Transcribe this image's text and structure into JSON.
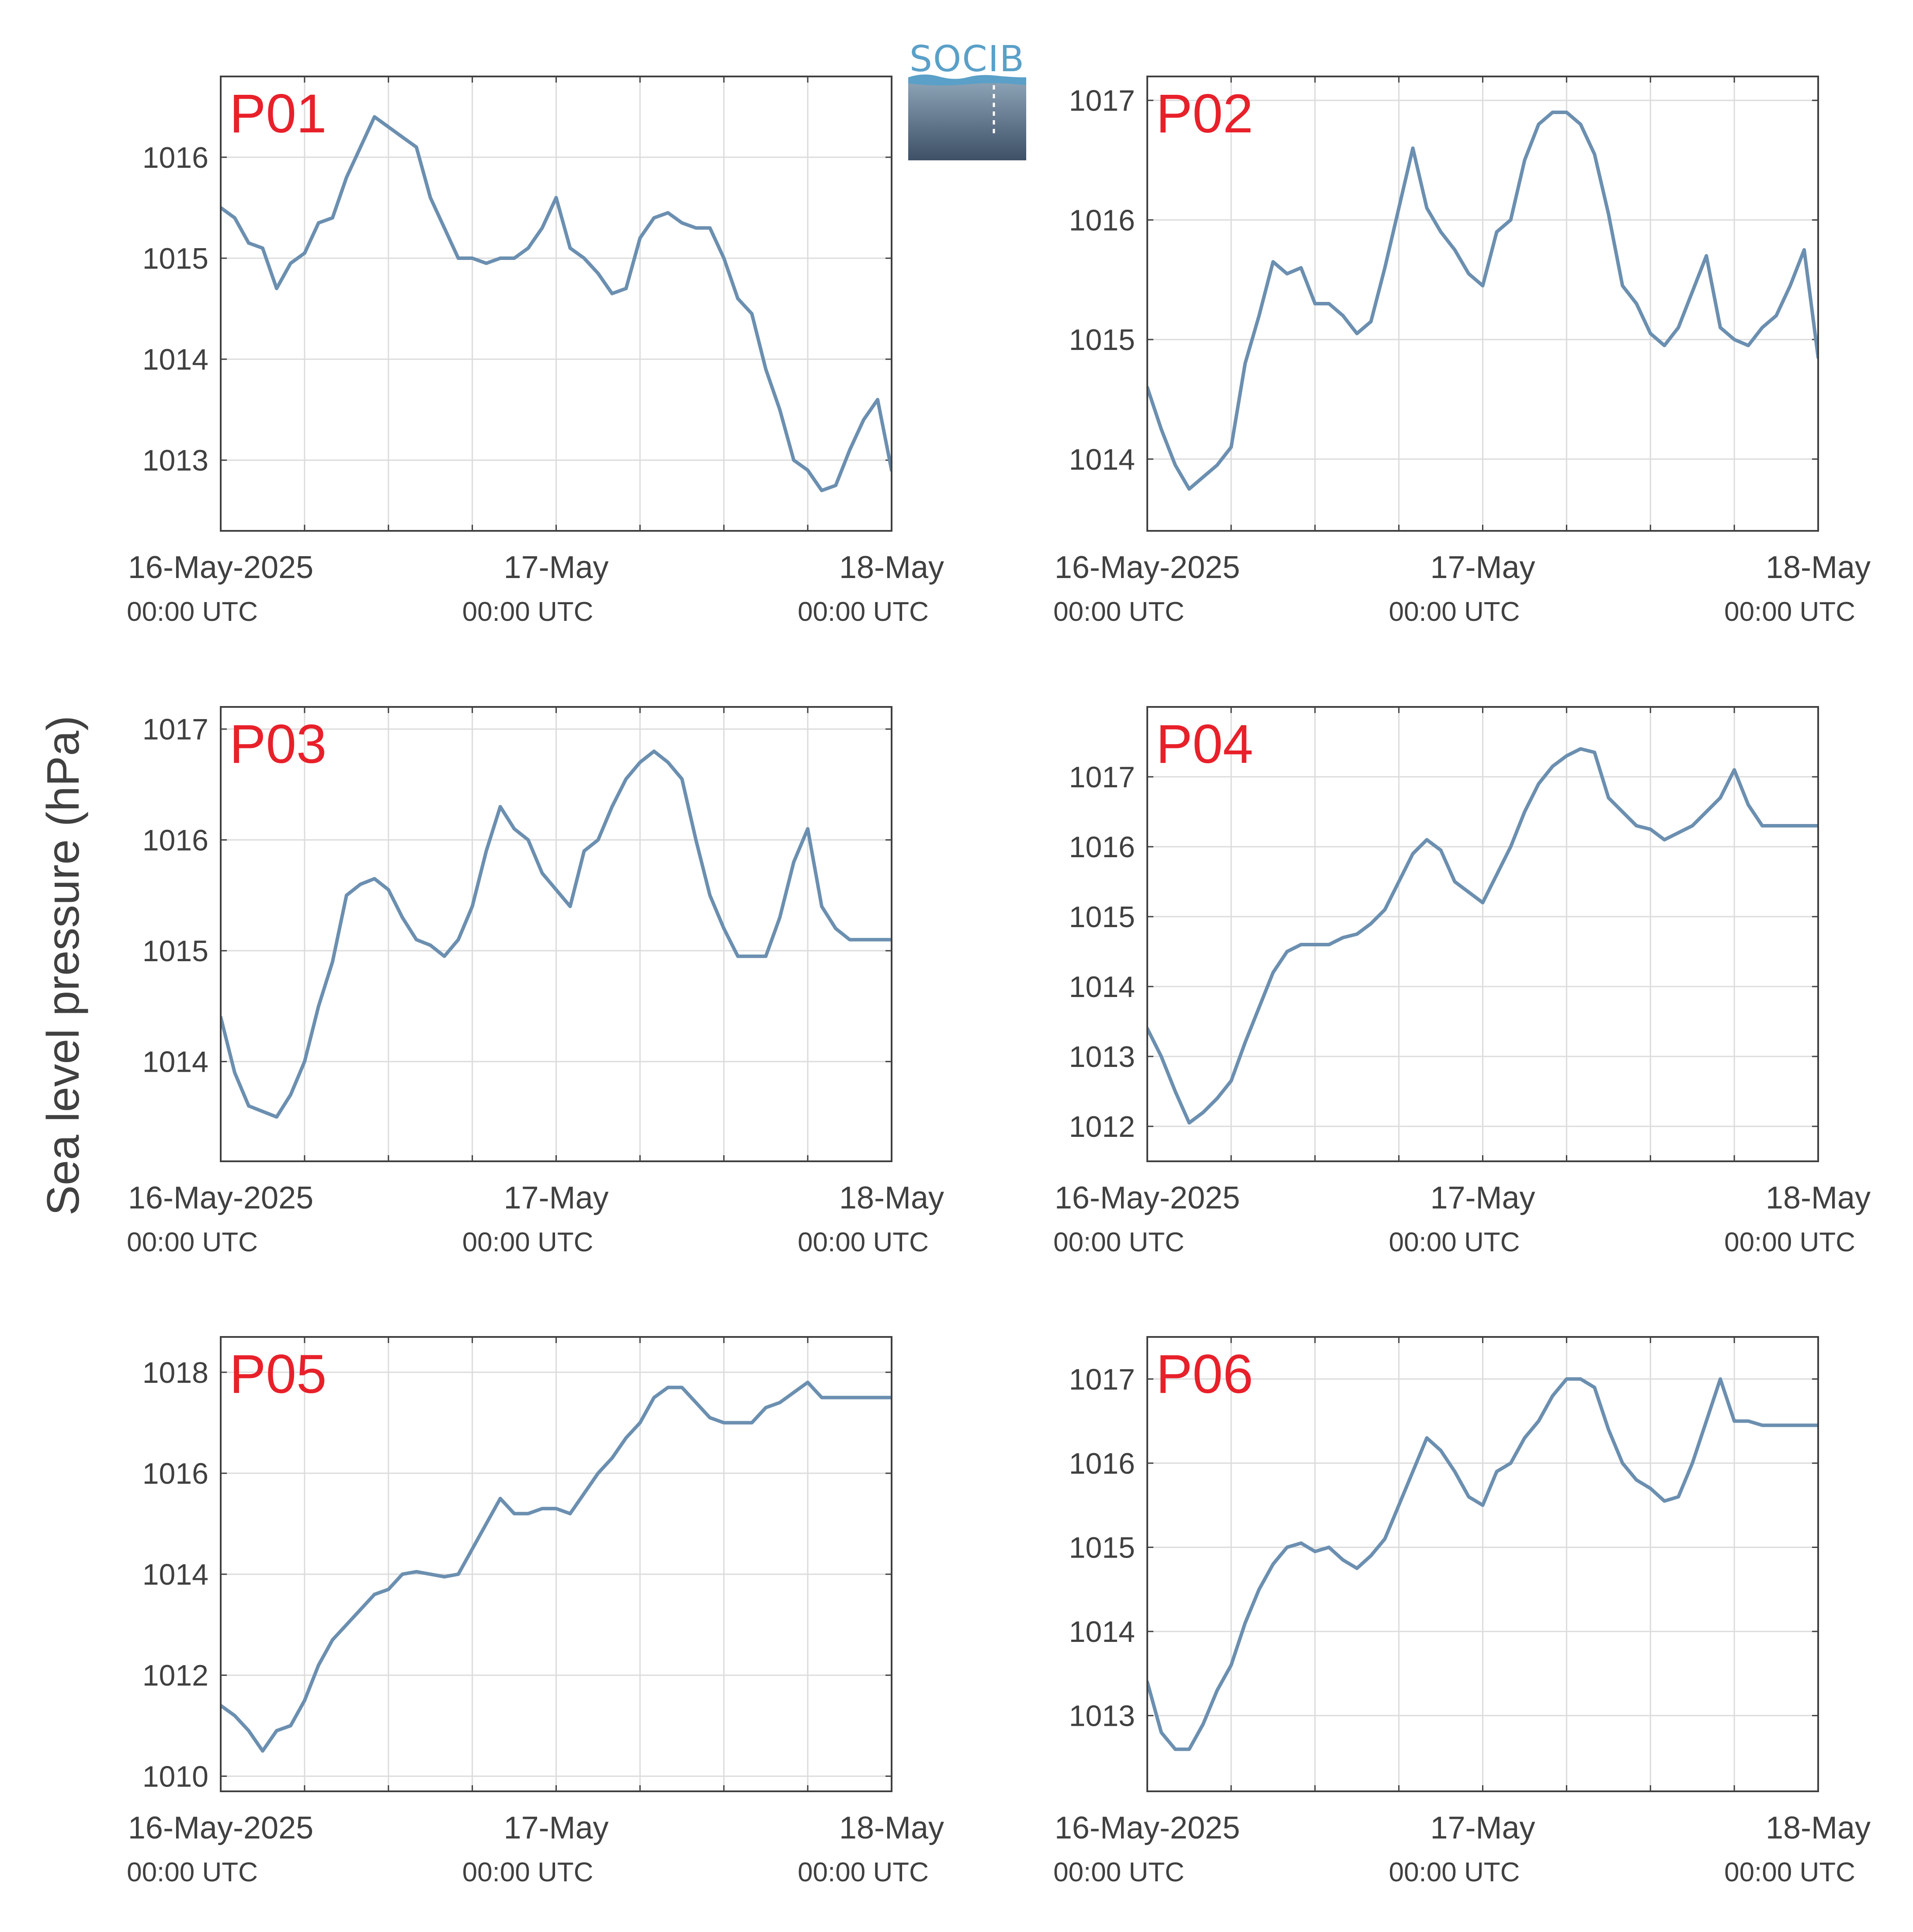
{
  "figure": {
    "ylabel": "Sea level pressure (hPa)",
    "logo_text": "SOCIB"
  },
  "colors": {
    "series_line": "#6b8fb0",
    "panel_label": "#e8202a",
    "axis": "#404040",
    "grid": "#dcdcdc"
  },
  "chart_data": [
    {
      "type": "line",
      "panel_label": "P01",
      "x_ticks": [
        {
          "date": "16-May-2025",
          "time": "00:00 UTC"
        },
        {
          "date": "17-May",
          "time": "00:00 UTC"
        },
        {
          "date": "18-May",
          "time": "00:00 UTC"
        }
      ],
      "x_range": [
        "2025-05-16T00:00",
        "2025-05-18T00:00"
      ],
      "ylim": [
        1012.3,
        1016.8
      ],
      "y_ticks": [
        1013,
        1014,
        1015,
        1016
      ],
      "grid": true,
      "x": [
        "2025-05-16T00:00",
        "2025-05-16T01:00",
        "2025-05-16T02:00",
        "2025-05-16T03:00",
        "2025-05-16T04:00",
        "2025-05-16T05:00",
        "2025-05-16T06:00",
        "2025-05-16T07:00",
        "2025-05-16T08:00",
        "2025-05-16T09:00",
        "2025-05-16T10:00",
        "2025-05-16T11:00",
        "2025-05-16T12:00",
        "2025-05-16T13:00",
        "2025-05-16T14:00",
        "2025-05-16T15:00",
        "2025-05-16T16:00",
        "2025-05-16T17:00",
        "2025-05-16T18:00",
        "2025-05-16T19:00",
        "2025-05-16T20:00",
        "2025-05-16T21:00",
        "2025-05-16T22:00",
        "2025-05-16T23:00",
        "2025-05-17T00:00",
        "2025-05-17T01:00",
        "2025-05-17T02:00",
        "2025-05-17T03:00",
        "2025-05-17T04:00",
        "2025-05-17T05:00",
        "2025-05-17T06:00",
        "2025-05-17T07:00",
        "2025-05-17T08:00",
        "2025-05-17T09:00",
        "2025-05-17T10:00",
        "2025-05-17T11:00",
        "2025-05-17T12:00",
        "2025-05-17T13:00",
        "2025-05-17T14:00",
        "2025-05-17T15:00",
        "2025-05-17T16:00",
        "2025-05-17T17:00",
        "2025-05-17T18:00",
        "2025-05-17T19:00",
        "2025-05-17T20:00",
        "2025-05-17T21:00",
        "2025-05-17T22:00",
        "2025-05-17T23:00",
        "2025-05-18T00:00"
      ],
      "y": [
        1015.5,
        1015.4,
        1015.15,
        1015.1,
        1014.7,
        1014.95,
        1015.05,
        1015.35,
        1015.4,
        1015.8,
        1016.1,
        1016.4,
        1016.3,
        1016.2,
        1016.1,
        1015.6,
        1015.3,
        1015.0,
        1015.0,
        1014.95,
        1015.0,
        1015.0,
        1015.1,
        1015.3,
        1015.6,
        1015.1,
        1015.0,
        1014.85,
        1014.65,
        1014.7,
        1015.2,
        1015.4,
        1015.45,
        1015.35,
        1015.3,
        1015.3,
        1015.0,
        1014.6,
        1014.45,
        1013.9,
        1013.5,
        1013.0,
        1012.9,
        1012.7,
        1012.75,
        1013.1,
        1013.4,
        1013.6,
        1012.9
      ]
    },
    {
      "type": "line",
      "panel_label": "P02",
      "x_ticks": [
        {
          "date": "16-May-2025",
          "time": "00:00 UTC"
        },
        {
          "date": "17-May",
          "time": "00:00 UTC"
        },
        {
          "date": "18-May",
          "time": "00:00 UTC"
        }
      ],
      "x_range": [
        "2025-05-16T00:00",
        "2025-05-18T00:00"
      ],
      "ylim": [
        1013.4,
        1017.2
      ],
      "y_ticks": [
        1014,
        1015,
        1016,
        1017
      ],
      "grid": true,
      "x": [
        "2025-05-16T00:00",
        "2025-05-16T01:00",
        "2025-05-16T02:00",
        "2025-05-16T03:00",
        "2025-05-16T04:00",
        "2025-05-16T05:00",
        "2025-05-16T06:00",
        "2025-05-16T07:00",
        "2025-05-16T08:00",
        "2025-05-16T09:00",
        "2025-05-16T10:00",
        "2025-05-16T11:00",
        "2025-05-16T12:00",
        "2025-05-16T13:00",
        "2025-05-16T14:00",
        "2025-05-16T15:00",
        "2025-05-16T16:00",
        "2025-05-16T17:00",
        "2025-05-16T18:00",
        "2025-05-16T19:00",
        "2025-05-16T20:00",
        "2025-05-16T21:00",
        "2025-05-16T22:00",
        "2025-05-16T23:00",
        "2025-05-17T00:00",
        "2025-05-17T01:00",
        "2025-05-17T02:00",
        "2025-05-17T03:00",
        "2025-05-17T04:00",
        "2025-05-17T05:00",
        "2025-05-17T06:00",
        "2025-05-17T07:00",
        "2025-05-17T08:00",
        "2025-05-17T09:00",
        "2025-05-17T10:00",
        "2025-05-17T11:00",
        "2025-05-17T12:00",
        "2025-05-17T13:00",
        "2025-05-17T14:00",
        "2025-05-17T15:00",
        "2025-05-17T16:00",
        "2025-05-17T17:00",
        "2025-05-17T18:00",
        "2025-05-17T19:00",
        "2025-05-17T20:00",
        "2025-05-17T21:00",
        "2025-05-17T22:00",
        "2025-05-17T23:00",
        "2025-05-18T00:00"
      ],
      "y": [
        1014.6,
        1014.25,
        1013.95,
        1013.75,
        1013.85,
        1013.95,
        1014.1,
        1014.8,
        1015.2,
        1015.65,
        1015.55,
        1015.6,
        1015.3,
        1015.3,
        1015.2,
        1015.05,
        1015.15,
        1015.6,
        1016.1,
        1016.6,
        1016.1,
        1015.9,
        1015.75,
        1015.55,
        1015.45,
        1015.9,
        1016.0,
        1016.5,
        1016.8,
        1016.9,
        1016.9,
        1016.8,
        1016.55,
        1016.05,
        1015.45,
        1015.3,
        1015.05,
        1014.95,
        1015.1,
        1015.4,
        1015.7,
        1015.1,
        1015.0,
        1014.95,
        1015.1,
        1015.2,
        1015.45,
        1015.75,
        1014.85
      ]
    },
    {
      "type": "line",
      "panel_label": "P03",
      "x_ticks": [
        {
          "date": "16-May-2025",
          "time": "00:00 UTC"
        },
        {
          "date": "17-May",
          "time": "00:00 UTC"
        },
        {
          "date": "18-May",
          "time": "00:00 UTC"
        }
      ],
      "x_range": [
        "2025-05-16T00:00",
        "2025-05-18T00:00"
      ],
      "ylim": [
        1013.1,
        1017.2
      ],
      "y_ticks": [
        1014,
        1015,
        1016,
        1017
      ],
      "grid": true,
      "x": [
        "2025-05-16T00:00",
        "2025-05-16T01:00",
        "2025-05-16T02:00",
        "2025-05-16T03:00",
        "2025-05-16T04:00",
        "2025-05-16T05:00",
        "2025-05-16T06:00",
        "2025-05-16T07:00",
        "2025-05-16T08:00",
        "2025-05-16T09:00",
        "2025-05-16T10:00",
        "2025-05-16T11:00",
        "2025-05-16T12:00",
        "2025-05-16T13:00",
        "2025-05-16T14:00",
        "2025-05-16T15:00",
        "2025-05-16T16:00",
        "2025-05-16T17:00",
        "2025-05-16T18:00",
        "2025-05-16T19:00",
        "2025-05-16T20:00",
        "2025-05-16T21:00",
        "2025-05-16T22:00",
        "2025-05-16T23:00",
        "2025-05-17T00:00",
        "2025-05-17T01:00",
        "2025-05-17T02:00",
        "2025-05-17T03:00",
        "2025-05-17T04:00",
        "2025-05-17T05:00",
        "2025-05-17T06:00",
        "2025-05-17T07:00",
        "2025-05-17T08:00",
        "2025-05-17T09:00",
        "2025-05-17T10:00",
        "2025-05-17T11:00",
        "2025-05-17T12:00",
        "2025-05-17T13:00",
        "2025-05-17T14:00",
        "2025-05-17T15:00",
        "2025-05-17T16:00",
        "2025-05-17T17:00",
        "2025-05-17T18:00",
        "2025-05-17T19:00",
        "2025-05-17T20:00",
        "2025-05-17T21:00",
        "2025-05-17T22:00",
        "2025-05-17T23:00",
        "2025-05-18T00:00"
      ],
      "y": [
        1014.4,
        1013.9,
        1013.6,
        1013.55,
        1013.5,
        1013.7,
        1014.0,
        1014.5,
        1014.9,
        1015.5,
        1015.6,
        1015.65,
        1015.55,
        1015.3,
        1015.1,
        1015.05,
        1014.95,
        1015.1,
        1015.4,
        1015.9,
        1016.3,
        1016.1,
        1016.0,
        1015.7,
        1015.55,
        1015.4,
        1015.9,
        1016.0,
        1016.3,
        1016.55,
        1016.7,
        1016.8,
        1016.7,
        1016.55,
        1016.0,
        1015.5,
        1015.2,
        1014.95,
        1014.95,
        1014.95,
        1015.3,
        1015.8,
        1016.1,
        1015.4,
        1015.2,
        1015.1,
        1015.1,
        1015.1,
        1015.1
      ]
    },
    {
      "type": "line",
      "panel_label": "P04",
      "x_ticks": [
        {
          "date": "16-May-2025",
          "time": "00:00 UTC"
        },
        {
          "date": "17-May",
          "time": "00:00 UTC"
        },
        {
          "date": "18-May",
          "time": "00:00 UTC"
        }
      ],
      "x_range": [
        "2025-05-16T00:00",
        "2025-05-18T00:00"
      ],
      "ylim": [
        1011.5,
        1018.0
      ],
      "y_ticks": [
        1012,
        1013,
        1014,
        1015,
        1016,
        1017
      ],
      "grid": true,
      "x": [
        "2025-05-16T00:00",
        "2025-05-16T01:00",
        "2025-05-16T02:00",
        "2025-05-16T03:00",
        "2025-05-16T04:00",
        "2025-05-16T05:00",
        "2025-05-16T06:00",
        "2025-05-16T07:00",
        "2025-05-16T08:00",
        "2025-05-16T09:00",
        "2025-05-16T10:00",
        "2025-05-16T11:00",
        "2025-05-16T12:00",
        "2025-05-16T13:00",
        "2025-05-16T14:00",
        "2025-05-16T15:00",
        "2025-05-16T16:00",
        "2025-05-16T17:00",
        "2025-05-16T18:00",
        "2025-05-16T19:00",
        "2025-05-16T20:00",
        "2025-05-16T21:00",
        "2025-05-16T22:00",
        "2025-05-16T23:00",
        "2025-05-17T00:00",
        "2025-05-17T01:00",
        "2025-05-17T02:00",
        "2025-05-17T03:00",
        "2025-05-17T04:00",
        "2025-05-17T05:00",
        "2025-05-17T06:00",
        "2025-05-17T07:00",
        "2025-05-17T08:00",
        "2025-05-17T09:00",
        "2025-05-17T10:00",
        "2025-05-17T11:00",
        "2025-05-17T12:00",
        "2025-05-17T13:00",
        "2025-05-17T14:00",
        "2025-05-17T15:00",
        "2025-05-17T16:00",
        "2025-05-17T17:00",
        "2025-05-17T18:00",
        "2025-05-17T19:00",
        "2025-05-17T20:00",
        "2025-05-17T21:00",
        "2025-05-17T22:00",
        "2025-05-17T23:00",
        "2025-05-18T00:00"
      ],
      "y": [
        1013.4,
        1013.0,
        1012.5,
        1012.05,
        1012.2,
        1012.4,
        1012.65,
        1013.2,
        1013.7,
        1014.2,
        1014.5,
        1014.6,
        1014.6,
        1014.6,
        1014.7,
        1014.75,
        1014.9,
        1015.1,
        1015.5,
        1015.9,
        1016.1,
        1015.95,
        1015.5,
        1015.35,
        1015.2,
        1015.6,
        1016.0,
        1016.5,
        1016.9,
        1017.15,
        1017.3,
        1017.4,
        1017.35,
        1016.7,
        1016.5,
        1016.3,
        1016.25,
        1016.1,
        1016.2,
        1016.3,
        1016.5,
        1016.7,
        1017.1,
        1016.6,
        1016.3,
        1016.3,
        1016.3,
        1016.3,
        1016.3
      ]
    },
    {
      "type": "line",
      "panel_label": "P05",
      "x_ticks": [
        {
          "date": "16-May-2025",
          "time": "00:00 UTC"
        },
        {
          "date": "17-May",
          "time": "00:00 UTC"
        },
        {
          "date": "18-May",
          "time": "00:00 UTC"
        }
      ],
      "x_range": [
        "2025-05-16T00:00",
        "2025-05-18T00:00"
      ],
      "ylim": [
        1009.7,
        1018.7
      ],
      "y_ticks": [
        1010,
        1012,
        1014,
        1016,
        1018
      ],
      "grid": true,
      "x": [
        "2025-05-16T00:00",
        "2025-05-16T01:00",
        "2025-05-16T02:00",
        "2025-05-16T03:00",
        "2025-05-16T04:00",
        "2025-05-16T05:00",
        "2025-05-16T06:00",
        "2025-05-16T07:00",
        "2025-05-16T08:00",
        "2025-05-16T09:00",
        "2025-05-16T10:00",
        "2025-05-16T11:00",
        "2025-05-16T12:00",
        "2025-05-16T13:00",
        "2025-05-16T14:00",
        "2025-05-16T15:00",
        "2025-05-16T16:00",
        "2025-05-16T17:00",
        "2025-05-16T18:00",
        "2025-05-16T19:00",
        "2025-05-16T20:00",
        "2025-05-16T21:00",
        "2025-05-16T22:00",
        "2025-05-16T23:00",
        "2025-05-17T00:00",
        "2025-05-17T01:00",
        "2025-05-17T02:00",
        "2025-05-17T03:00",
        "2025-05-17T04:00",
        "2025-05-17T05:00",
        "2025-05-17T06:00",
        "2025-05-17T07:00",
        "2025-05-17T08:00",
        "2025-05-17T09:00",
        "2025-05-17T10:00",
        "2025-05-17T11:00",
        "2025-05-17T12:00",
        "2025-05-17T13:00",
        "2025-05-17T14:00",
        "2025-05-17T15:00",
        "2025-05-17T16:00",
        "2025-05-17T17:00",
        "2025-05-17T18:00",
        "2025-05-17T19:00",
        "2025-05-17T20:00",
        "2025-05-17T21:00",
        "2025-05-17T22:00",
        "2025-05-17T23:00",
        "2025-05-18T00:00"
      ],
      "y": [
        1011.4,
        1011.2,
        1010.9,
        1010.5,
        1010.9,
        1011.0,
        1011.5,
        1012.2,
        1012.7,
        1013.0,
        1013.3,
        1013.6,
        1013.7,
        1014.0,
        1014.05,
        1014.0,
        1013.95,
        1014.0,
        1014.5,
        1015.0,
        1015.5,
        1015.2,
        1015.2,
        1015.3,
        1015.3,
        1015.2,
        1015.6,
        1016.0,
        1016.3,
        1016.7,
        1017.0,
        1017.5,
        1017.7,
        1017.7,
        1017.4,
        1017.1,
        1017.0,
        1017.0,
        1017.0,
        1017.3,
        1017.4,
        1017.6,
        1017.8,
        1017.5,
        1017.5,
        1017.5,
        1017.5,
        1017.5,
        1017.5
      ]
    },
    {
      "type": "line",
      "panel_label": "P06",
      "x_ticks": [
        {
          "date": "16-May-2025",
          "time": "00:00 UTC"
        },
        {
          "date": "17-May",
          "time": "00:00 UTC"
        },
        {
          "date": "18-May",
          "time": "00:00 UTC"
        }
      ],
      "x_range": [
        "2025-05-16T00:00",
        "2025-05-18T00:00"
      ],
      "ylim": [
        1012.1,
        1017.5
      ],
      "y_ticks": [
        1013,
        1014,
        1015,
        1016,
        1017
      ],
      "grid": true,
      "x": [
        "2025-05-16T00:00",
        "2025-05-16T01:00",
        "2025-05-16T02:00",
        "2025-05-16T03:00",
        "2025-05-16T04:00",
        "2025-05-16T05:00",
        "2025-05-16T06:00",
        "2025-05-16T07:00",
        "2025-05-16T08:00",
        "2025-05-16T09:00",
        "2025-05-16T10:00",
        "2025-05-16T11:00",
        "2025-05-16T12:00",
        "2025-05-16T13:00",
        "2025-05-16T14:00",
        "2025-05-16T15:00",
        "2025-05-16T16:00",
        "2025-05-16T17:00",
        "2025-05-16T18:00",
        "2025-05-16T19:00",
        "2025-05-16T20:00",
        "2025-05-16T21:00",
        "2025-05-16T22:00",
        "2025-05-16T23:00",
        "2025-05-17T00:00",
        "2025-05-17T01:00",
        "2025-05-17T02:00",
        "2025-05-17T03:00",
        "2025-05-17T04:00",
        "2025-05-17T05:00",
        "2025-05-17T06:00",
        "2025-05-17T07:00",
        "2025-05-17T08:00",
        "2025-05-17T09:00",
        "2025-05-17T10:00",
        "2025-05-17T11:00",
        "2025-05-17T12:00",
        "2025-05-17T13:00",
        "2025-05-17T14:00",
        "2025-05-17T15:00",
        "2025-05-17T16:00",
        "2025-05-17T17:00",
        "2025-05-17T18:00",
        "2025-05-17T19:00",
        "2025-05-17T20:00",
        "2025-05-17T21:00",
        "2025-05-17T22:00",
        "2025-05-17T23:00",
        "2025-05-18T00:00"
      ],
      "y": [
        1013.4,
        1012.8,
        1012.6,
        1012.6,
        1012.9,
        1013.3,
        1013.6,
        1014.1,
        1014.5,
        1014.8,
        1015.0,
        1015.05,
        1014.95,
        1015.0,
        1014.85,
        1014.75,
        1014.9,
        1015.1,
        1015.5,
        1015.9,
        1016.3,
        1016.15,
        1015.9,
        1015.6,
        1015.5,
        1015.9,
        1016.0,
        1016.3,
        1016.5,
        1016.8,
        1017.0,
        1017.0,
        1016.9,
        1016.4,
        1016.0,
        1015.8,
        1015.7,
        1015.55,
        1015.6,
        1016.0,
        1016.5,
        1017.0,
        1016.5,
        1016.5,
        1016.45,
        1016.45,
        1016.45,
        1016.45,
        1016.45
      ]
    }
  ]
}
